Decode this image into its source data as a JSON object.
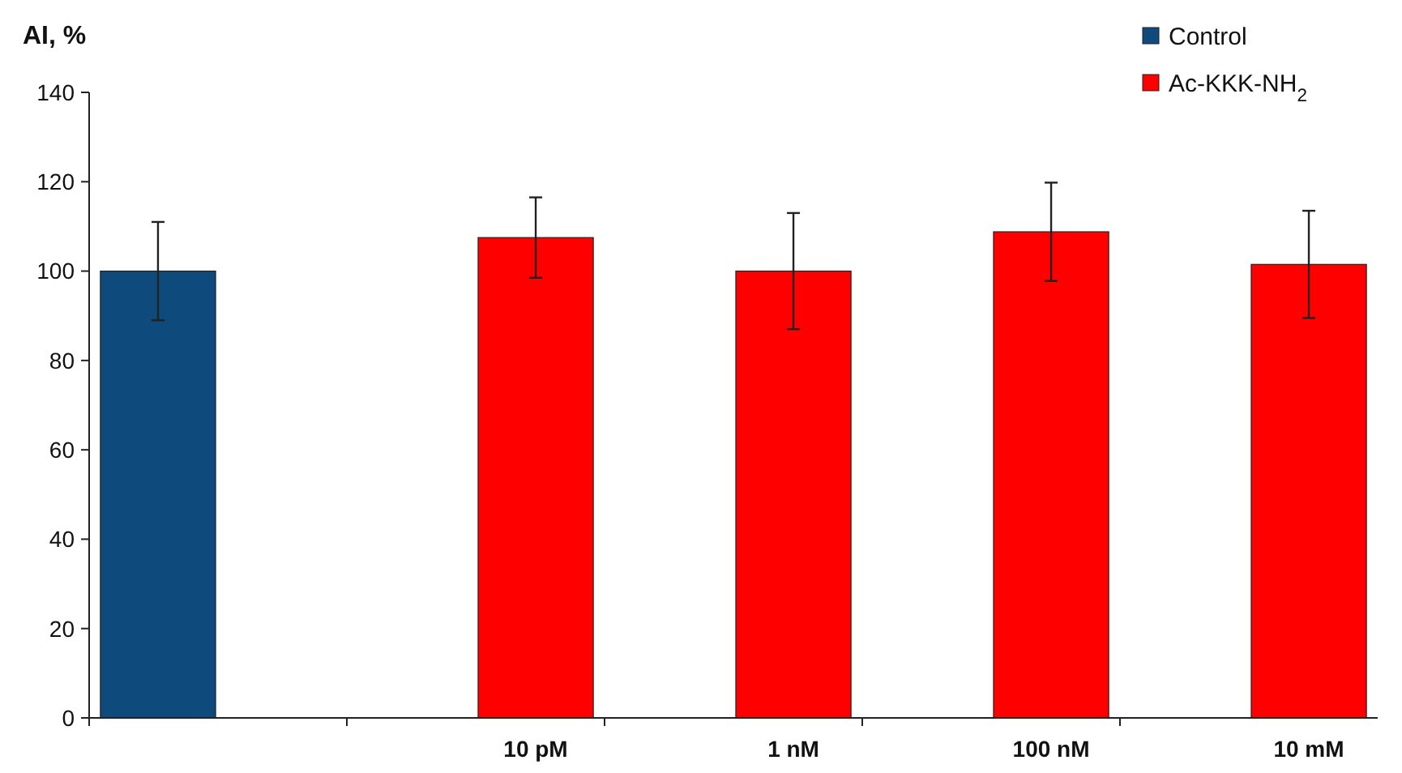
{
  "chart_data": {
    "type": "bar",
    "ylabel": "AI, %",
    "categories": [
      null,
      "10 pM",
      "1 nM",
      "100 nM",
      "10 mM"
    ],
    "series": [
      {
        "name": "Control",
        "color": "#0e4a7c",
        "values": [
          100,
          null,
          null,
          null,
          null
        ],
        "errors": [
          11,
          null,
          null,
          null,
          null
        ]
      },
      {
        "name": "Ac-KKK-NH$_{2}$",
        "color": "#ff0000",
        "values": [
          null,
          107.5,
          100,
          108.8,
          101.5
        ],
        "errors": [
          null,
          9,
          13,
          11,
          12
        ]
      }
    ],
    "ylim": [
      0,
      140
    ],
    "yticks": [
      0,
      20,
      40,
      60,
      80,
      100,
      120,
      140
    ],
    "legend": "top right"
  }
}
